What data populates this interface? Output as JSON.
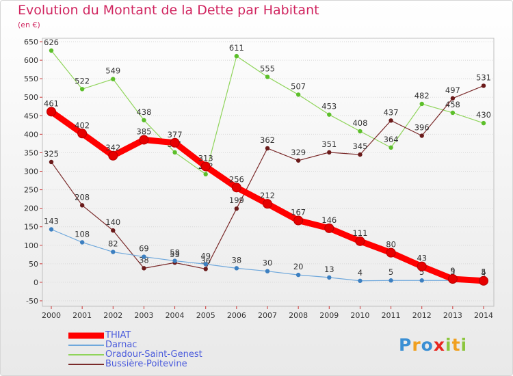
{
  "header": {
    "title": "Evolution du Montant de la Dette par Habitant",
    "unit": "(en €)"
  },
  "logo": {
    "text": "Proxiti",
    "letters": [
      {
        "ch": "P",
        "color": "#3a8fd4"
      },
      {
        "ch": "r",
        "color": "#f0a020"
      },
      {
        "ch": "o",
        "color": "#3a8fd4"
      },
      {
        "ch": "x",
        "color": "#e8261f"
      },
      {
        "ch": "i",
        "color": "#8cc63e"
      },
      {
        "ch": "t",
        "color": "#f0a020"
      },
      {
        "ch": "i",
        "color": "#8cc63e"
      }
    ]
  },
  "chart_data": {
    "type": "line",
    "title": "Evolution du Montant de la Dette par Habitant",
    "subtitle": "(en €)",
    "xlabel": "",
    "ylabel": "",
    "x": [
      2000,
      2001,
      2002,
      2003,
      2004,
      2005,
      2006,
      2007,
      2008,
      2009,
      2010,
      2011,
      2012,
      2013,
      2014
    ],
    "ylim": [
      -50,
      650
    ],
    "yticks": [
      -50,
      0,
      50,
      100,
      150,
      200,
      250,
      300,
      350,
      400,
      450,
      500,
      550,
      600,
      650
    ],
    "grid": true,
    "legend_position": "bottom-left",
    "series": [
      {
        "name": "Oradour-Saint-Genest",
        "color": "#8fd45a",
        "marker": "#5cbf2a",
        "width": 1.2,
        "values": [
          626,
          522,
          549,
          438,
          351,
          292,
          611,
          555,
          507,
          453,
          408,
          364,
          482,
          458,
          430
        ]
      },
      {
        "name": "Bussière-Poitevine",
        "color": "#7a2a2a",
        "marker": "#6a1a1a",
        "width": 1.2,
        "values": [
          325,
          208,
          140,
          38,
          53,
          36,
          199,
          362,
          329,
          351,
          345,
          437,
          396,
          497,
          531
        ]
      },
      {
        "name": "Darnac",
        "color": "#6fa8dc",
        "marker": "#3c7fc0",
        "width": 1.2,
        "values": [
          143,
          108,
          82,
          69,
          58,
          49,
          38,
          30,
          20,
          13,
          4,
          5,
          5,
          5,
          5
        ]
      },
      {
        "name": "THIAT",
        "color": "#ff0000",
        "marker": "#e60000",
        "width": 9,
        "values": [
          461,
          402,
          342,
          385,
          377,
          313,
          256,
          212,
          167,
          146,
          111,
          80,
          43,
          9,
          4
        ]
      }
    ],
    "legend": [
      "THIAT",
      "Darnac",
      "Oradour-Saint-Genest",
      "Bussière-Poitevine"
    ]
  }
}
